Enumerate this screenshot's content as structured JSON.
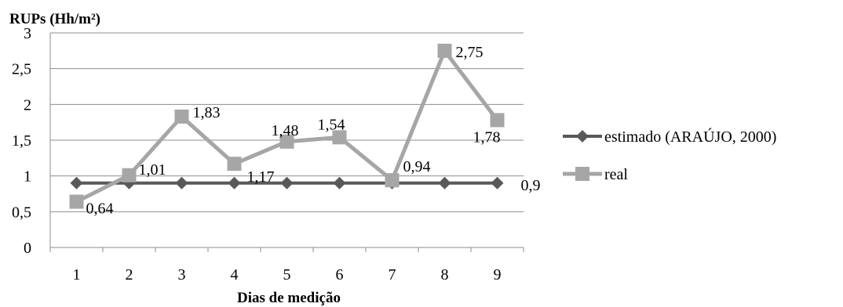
{
  "chart_data": {
    "type": "line",
    "ylabel": "RUPs (Hh/m²)",
    "xlabel": "Dias de medição",
    "categories": [
      "1",
      "2",
      "3",
      "4",
      "5",
      "6",
      "7",
      "8",
      "9"
    ],
    "yticks": [
      "0",
      "0,5",
      "1",
      "1,5",
      "2",
      "2,5",
      "3"
    ],
    "ylim": [
      0,
      3
    ],
    "grid": true,
    "legend_position": "right",
    "series": [
      {
        "name": "estimado (ARAÚJO, 2000)",
        "values": [
          0.9,
          0.9,
          0.9,
          0.9,
          0.9,
          0.9,
          0.9,
          0.9,
          0.9
        ],
        "labels": [
          "",
          "",
          "",
          "",
          "",
          "",
          "",
          "",
          "0,9"
        ],
        "marker": "diamond",
        "color": "#595959"
      },
      {
        "name": "real",
        "values": [
          0.64,
          1.01,
          1.83,
          1.17,
          1.48,
          1.54,
          0.94,
          2.75,
          1.78
        ],
        "labels": [
          "0,64",
          "1,01",
          "1,83",
          "1,17",
          "1,48",
          "1,54",
          "0,94",
          "2,75",
          "1,78"
        ],
        "marker": "square",
        "color": "#a6a6a6"
      }
    ]
  }
}
